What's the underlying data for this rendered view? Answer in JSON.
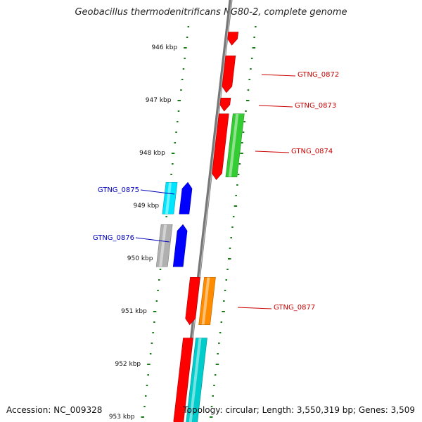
{
  "title": "Geobacillus thermodenitrificans NG80-2, complete genome",
  "accession_label": "Accession: NC_009328",
  "topology_label": "Topology: circular; Length: 3,550,319 bp; Genes: 3,509",
  "colors": {
    "backbone": "#777777",
    "ticks": "#1a7a1a",
    "forward_label": "#cc0000",
    "reverse_label": "#0000bb"
  },
  "kbp_ticks": [
    "946 kbp",
    "947 kbp",
    "948 kbp",
    "949 kbp",
    "950 kbp",
    "951 kbp",
    "952 kbp",
    "953 kbp"
  ],
  "gene_labels": [
    {
      "name": "GTNG_0872",
      "strand": "forward"
    },
    {
      "name": "GTNG_0873",
      "strand": "forward"
    },
    {
      "name": "GTNG_0874",
      "strand": "forward"
    },
    {
      "name": "GTNG_0875",
      "strand": "reverse"
    },
    {
      "name": "GTNG_0876",
      "strand": "reverse"
    },
    {
      "name": "GTNG_0877",
      "strand": "forward"
    }
  ],
  "features": [
    {
      "kind": "cds",
      "color": "#ff0000",
      "from_kbp": 945.7,
      "to_kbp": 945.95,
      "direction": "down"
    },
    {
      "kind": "cds",
      "color": "#ff0000",
      "from_kbp": 946.15,
      "to_kbp": 946.85,
      "direction": "down"
    },
    {
      "kind": "cds",
      "color": "#ff0000",
      "from_kbp": 946.95,
      "to_kbp": 947.2,
      "direction": "down"
    },
    {
      "kind": "cds",
      "color": "#ff0000",
      "from_kbp": 947.25,
      "to_kbp": 948.5,
      "direction": "down"
    },
    {
      "kind": "gene",
      "color": "#33cc33",
      "from_kbp": 947.25,
      "to_kbp": 948.45
    },
    {
      "kind": "gene",
      "color": "#00e5ff",
      "from_kbp": 948.55,
      "to_kbp": 949.15
    },
    {
      "kind": "cds",
      "color": "#0000ff",
      "from_kbp": 948.55,
      "to_kbp": 949.15,
      "direction": "up"
    },
    {
      "kind": "gene",
      "color": "#b0b0b0",
      "from_kbp": 949.35,
      "to_kbp": 950.15
    },
    {
      "kind": "cds",
      "color": "#0000ff",
      "from_kbp": 949.35,
      "to_kbp": 950.15,
      "direction": "up"
    },
    {
      "kind": "cds",
      "color": "#ff0000",
      "from_kbp": 950.35,
      "to_kbp": 951.25,
      "direction": "down"
    },
    {
      "kind": "gene",
      "color": "#ff8c00",
      "from_kbp": 950.35,
      "to_kbp": 951.25
    },
    {
      "kind": "cds",
      "color": "#ff0000",
      "from_kbp": 951.5,
      "to_kbp": 953.2,
      "direction": "down"
    },
    {
      "kind": "gene",
      "color": "#00cccc",
      "from_kbp": 951.5,
      "to_kbp": 953.2
    }
  ]
}
